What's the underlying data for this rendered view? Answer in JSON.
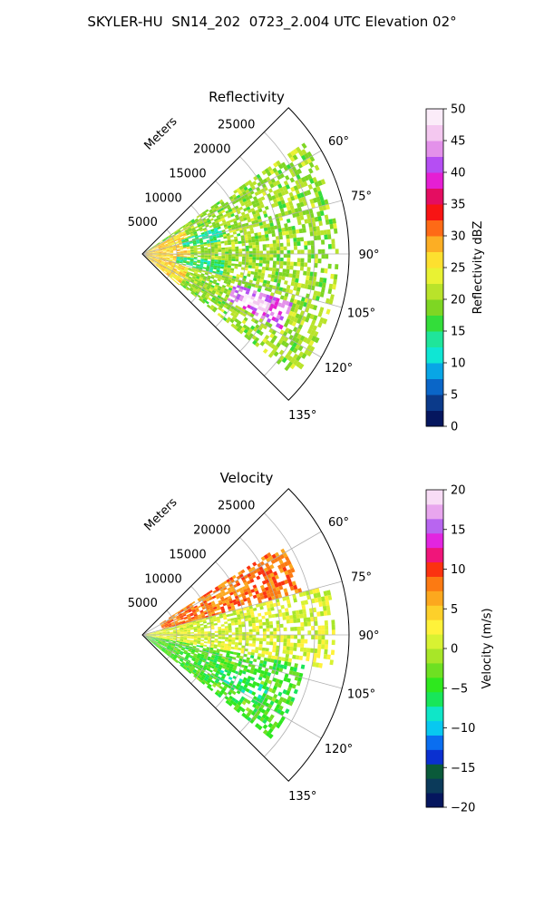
{
  "figure": {
    "title": "SKYLER-HU  SN14_202  0723_2.004 UTC Elevation 02°"
  },
  "chart_data": [
    {
      "type": "heatmap",
      "projection": "polar-sector",
      "title": "Reflectivity",
      "range_label": "Meters",
      "azimuth_range_deg": [
        45,
        135
      ],
      "max_range_m": 30000,
      "range_ticks": [
        5000,
        10000,
        15000,
        20000,
        25000
      ],
      "range_tick_labels": [
        "5000",
        "10000",
        "15000",
        "20000",
        "25000"
      ],
      "azimuth_ticks": [
        60,
        75,
        90,
        105,
        120,
        135
      ],
      "azimuth_tick_labels": [
        "60°",
        "75°",
        "90°",
        "105°",
        "120°",
        "135°"
      ],
      "grid": true,
      "colorbar": {
        "label": "Reflectivity dBZ",
        "min": 0,
        "max": 50,
        "ticks": [
          0,
          5,
          10,
          15,
          20,
          25,
          30,
          35,
          40,
          45,
          50
        ],
        "tick_labels": [
          "0",
          "5",
          "10",
          "15",
          "20",
          "25",
          "30",
          "35",
          "40",
          "45",
          "50"
        ],
        "colors": [
          "#05165e",
          "#0b3a8a",
          "#0a66c8",
          "#08a6e6",
          "#0fe6d4",
          "#1fe59a",
          "#33dd3a",
          "#7ed623",
          "#b9e32a",
          "#e9f233",
          "#fde02f",
          "#fcae24",
          "#fe6a16",
          "#f81414",
          "#e40d61",
          "#e51fd3",
          "#b54ef3",
          "#e391ea",
          "#f4c8f0",
          "#fbecf9"
        ]
      },
      "features": [
        {
          "name": "echo-field",
          "az_min": 55,
          "az_max": 128,
          "r_min": 500,
          "r_max": 28500,
          "value": 20
        },
        {
          "name": "near-field",
          "az_min": 60,
          "az_max": 130,
          "r_min": 300,
          "r_max": 7000,
          "value": 27
        },
        {
          "name": "weak-band",
          "az_min": 70,
          "az_max": 80,
          "r_min": 6000,
          "r_max": 12000,
          "value": 14
        },
        {
          "name": "weak-band-2",
          "az_min": 94,
          "az_max": 104,
          "r_min": 5000,
          "r_max": 12000,
          "value": 15
        },
        {
          "name": "strong-cell",
          "az_min": 108,
          "az_max": 118,
          "r_min": 14000,
          "r_max": 23000,
          "value": 42
        },
        {
          "name": "strong-cell-core",
          "az_min": 111,
          "az_max": 115,
          "r_min": 16000,
          "r_max": 20000,
          "value": 48
        }
      ]
    },
    {
      "type": "heatmap",
      "projection": "polar-sector",
      "title": "Velocity",
      "range_label": "Meters",
      "azimuth_range_deg": [
        45,
        135
      ],
      "max_range_m": 30000,
      "range_ticks": [
        5000,
        10000,
        15000,
        20000,
        25000
      ],
      "range_tick_labels": [
        "5000",
        "10000",
        "15000",
        "20000",
        "25000"
      ],
      "azimuth_ticks": [
        60,
        75,
        90,
        105,
        120,
        135
      ],
      "azimuth_tick_labels": [
        "60°",
        "75°",
        "90°",
        "105°",
        "120°",
        "135°"
      ],
      "grid": true,
      "colorbar": {
        "label": "Velocity (m/s)",
        "min": -20,
        "max": 20,
        "ticks": [
          -20,
          -15,
          -10,
          -5,
          0,
          5,
          10,
          15,
          20
        ],
        "tick_labels": [
          "−20",
          "−15",
          "−10",
          "−5",
          "0",
          "5",
          "10",
          "15",
          "20"
        ],
        "colors": [
          "#05165e",
          "#0b3a5a",
          "#0a5a3a",
          "#0a30d0",
          "#0a6ef0",
          "#08c8f0",
          "#0fe6c8",
          "#18e65a",
          "#2ee81e",
          "#6ee022",
          "#a8e628",
          "#d8f232",
          "#fff23a",
          "#fdd02a",
          "#fca81e",
          "#fc7a12",
          "#fb3210",
          "#f0157a",
          "#e225e0",
          "#b865f0",
          "#e8a6ee",
          "#f8dcf6"
        ]
      },
      "features": [
        {
          "name": "outbound-band",
          "az_min": 56,
          "az_max": 78,
          "r_min": 3000,
          "r_max": 24000,
          "value": 8
        },
        {
          "name": "near-zero-field",
          "az_min": 75,
          "az_max": 100,
          "r_min": 500,
          "r_max": 28000,
          "value": 1
        },
        {
          "name": "inbound-field",
          "az_min": 100,
          "az_max": 128,
          "r_min": 500,
          "r_max": 24000,
          "value": -4
        },
        {
          "name": "inbound-core",
          "az_min": 112,
          "az_max": 120,
          "r_min": 12000,
          "r_max": 20000,
          "value": -6
        }
      ]
    }
  ]
}
